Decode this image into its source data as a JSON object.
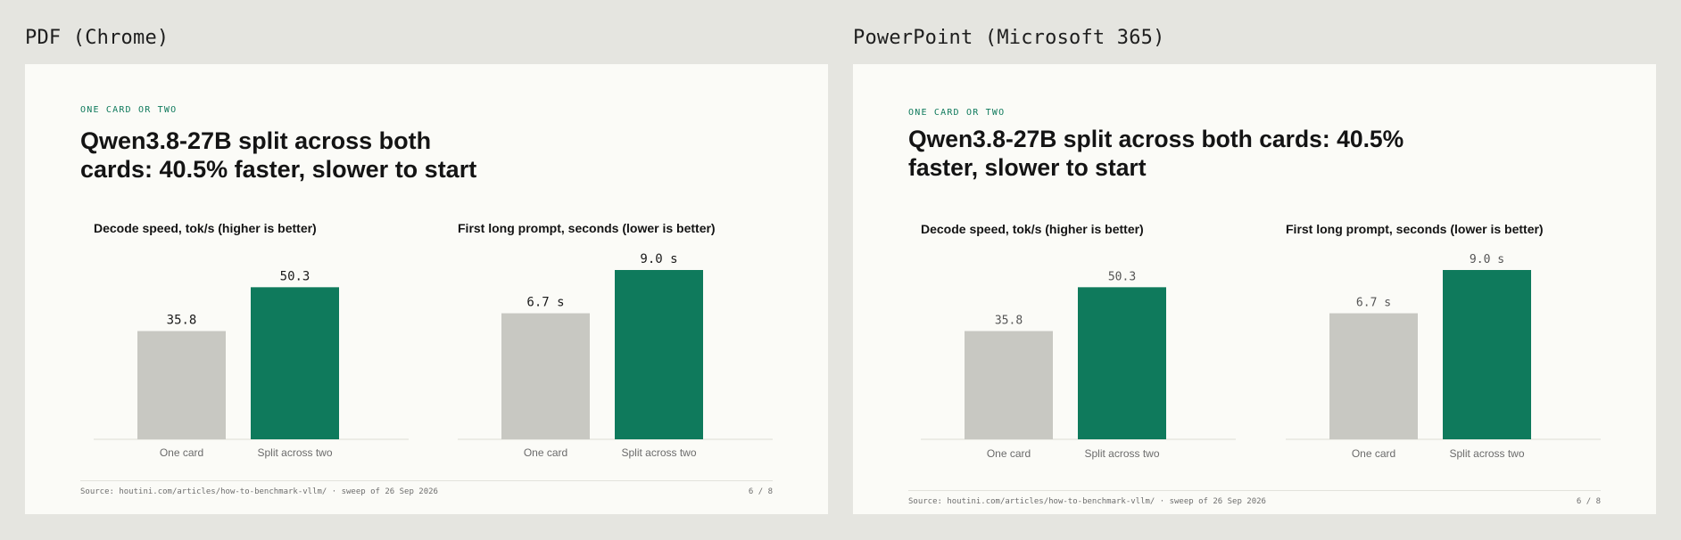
{
  "panels": [
    {
      "label": "PDF (Chrome)",
      "eyebrow": "ONE CARD OR TWO",
      "title_lines": [
        "Qwen3.8-27B split across both",
        "cards: 40.5% faster, slower to start"
      ],
      "source": "Source: houtini.com/articles/how-to-benchmark-vllm/ · sweep of 26 Sep 2026",
      "page": "6 / 8"
    },
    {
      "label": "PowerPoint (Microsoft 365)",
      "eyebrow": "ONE CARD OR TWO",
      "title_lines": [
        "Qwen3.8-27B split across both cards: 40.5%",
        "faster, slower to start"
      ],
      "source": "Source: houtini.com/articles/how-to-benchmark-vllm/ · sweep of 26 Sep 2026",
      "page": "6 / 8"
    }
  ],
  "chart_data": [
    {
      "type": "bar",
      "title": "Decode speed, tok/s (higher is better)",
      "categories": [
        "One card",
        "Split across two"
      ],
      "values": [
        35.8,
        50.3
      ],
      "value_labels": [
        "35.8",
        "50.3"
      ],
      "ylim": [
        0,
        56
      ],
      "colors": [
        "#c8c8c2",
        "#0f7a5c"
      ]
    },
    {
      "type": "bar",
      "title": "First long prompt, seconds (lower is better)",
      "categories": [
        "One card",
        "Split across two"
      ],
      "values": [
        6.7,
        9.0
      ],
      "value_labels": [
        "6.7 s",
        "9.0 s"
      ],
      "ylim": [
        0,
        9.0
      ],
      "colors": [
        "#c8c8c2",
        "#0f7a5c"
      ]
    }
  ],
  "colors": {
    "accent": "#0f7a5c",
    "baseline_bar": "#c8c8c2",
    "background": "#e5e5e0",
    "slide": "#fbfbf7"
  }
}
